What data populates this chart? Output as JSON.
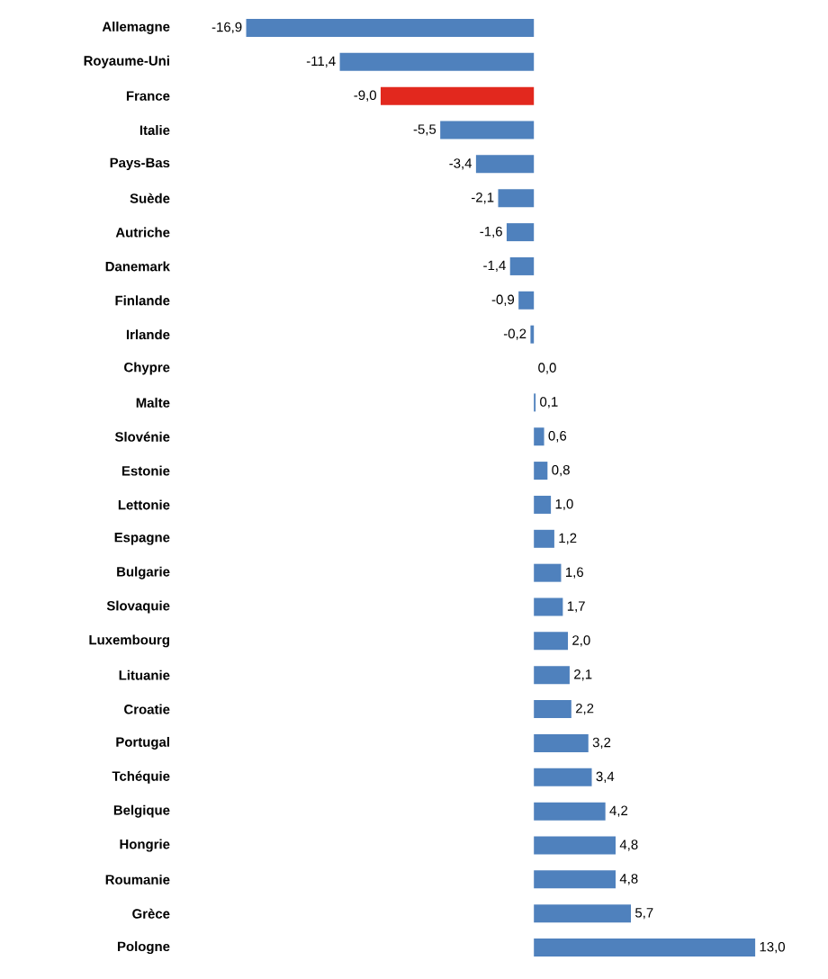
{
  "chart_data": {
    "type": "bar",
    "orientation": "horizontal",
    "tick_labels": "y",
    "categories": [
      "Allemagne",
      "Royaume-Uni",
      "France",
      "Italie",
      "Pays-Bas",
      "Suède",
      "Autriche",
      "Danemark",
      "Finlande",
      "Irlande",
      "Chypre",
      "Malte",
      "Slovénie",
      "Estonie",
      "Lettonie",
      "Espagne",
      "Bulgarie",
      "Slovaquie",
      "Luxembourg",
      "Lituanie",
      "Croatie",
      "Portugal",
      "Tchéquie",
      "Belgique",
      "Hongrie",
      "Roumanie",
      "Grèce",
      "Pologne"
    ],
    "values": [
      -16.9,
      -11.4,
      -9.0,
      -5.5,
      -3.4,
      -2.1,
      -1.6,
      -1.4,
      -0.9,
      -0.2,
      0.0,
      0.1,
      0.6,
      0.8,
      1.0,
      1.2,
      1.6,
      1.7,
      2.0,
      2.1,
      2.2,
      3.2,
      3.4,
      4.2,
      4.8,
      4.8,
      5.7,
      13.0
    ],
    "value_labels": [
      "-16,9",
      "-11,4",
      "-9,0",
      "-5,5",
      "-3,4",
      "-2,1",
      "-1,6",
      "-1,4",
      "-0,9",
      "-0,2",
      "0,0",
      "0,1",
      "0,6",
      "0,8",
      "1,0",
      "1,2",
      "1,6",
      "1,7",
      "2,0",
      "2,1",
      "2,2",
      "3,2",
      "3,4",
      "4,2",
      "4,8",
      "4,8",
      "5,7",
      "13,0"
    ],
    "colors": [
      "#4f81bd",
      "#4f81bd",
      "#e2281e",
      "#4f81bd",
      "#4f81bd",
      "#4f81bd",
      "#4f81bd",
      "#4f81bd",
      "#4f81bd",
      "#4f81bd",
      "#4f81bd",
      "#4f81bd",
      "#4f81bd",
      "#4f81bd",
      "#4f81bd",
      "#4f81bd",
      "#4f81bd",
      "#4f81bd",
      "#4f81bd",
      "#4f81bd",
      "#4f81bd",
      "#4f81bd",
      "#4f81bd",
      "#4f81bd",
      "#4f81bd",
      "#4f81bd",
      "#4f81bd",
      "#4f81bd"
    ]
  }
}
